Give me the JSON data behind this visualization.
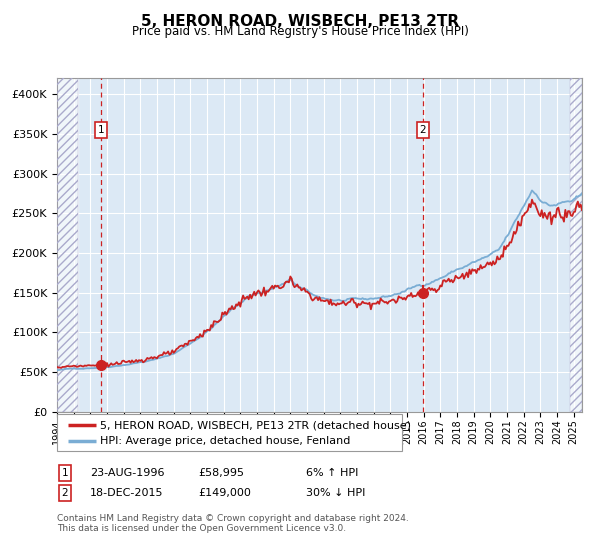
{
  "title": "5, HERON ROAD, WISBECH, PE13 2TR",
  "subtitle": "Price paid vs. HM Land Registry's House Price Index (HPI)",
  "ylim": [
    0,
    420000
  ],
  "yticks": [
    0,
    50000,
    100000,
    150000,
    200000,
    250000,
    300000,
    350000,
    400000
  ],
  "ytick_labels": [
    "£0",
    "£50K",
    "£100K",
    "£150K",
    "£200K",
    "£250K",
    "£300K",
    "£350K",
    "£400K"
  ],
  "hpi_color": "#7aadd4",
  "price_color": "#cc2222",
  "bg_color": "#dce9f5",
  "grid_color": "#ffffff",
  "sale1_date_num": 1996.647,
  "sale1_price": 58995,
  "sale1_label": "23-AUG-1996",
  "sale1_amount": "£58,995",
  "sale1_hpi": "6% ↑ HPI",
  "sale2_date_num": 2015.962,
  "sale2_price": 149000,
  "sale2_label": "18-DEC-2015",
  "sale2_amount": "£149,000",
  "sale2_hpi": "30% ↓ HPI",
  "legend_line1": "5, HERON ROAD, WISBECH, PE13 2TR (detached house)",
  "legend_line2": "HPI: Average price, detached house, Fenland",
  "footer": "Contains HM Land Registry data © Crown copyright and database right 2024.\nThis data is licensed under the Open Government Licence v3.0.",
  "xmin": 1994.0,
  "xmax": 2025.5
}
